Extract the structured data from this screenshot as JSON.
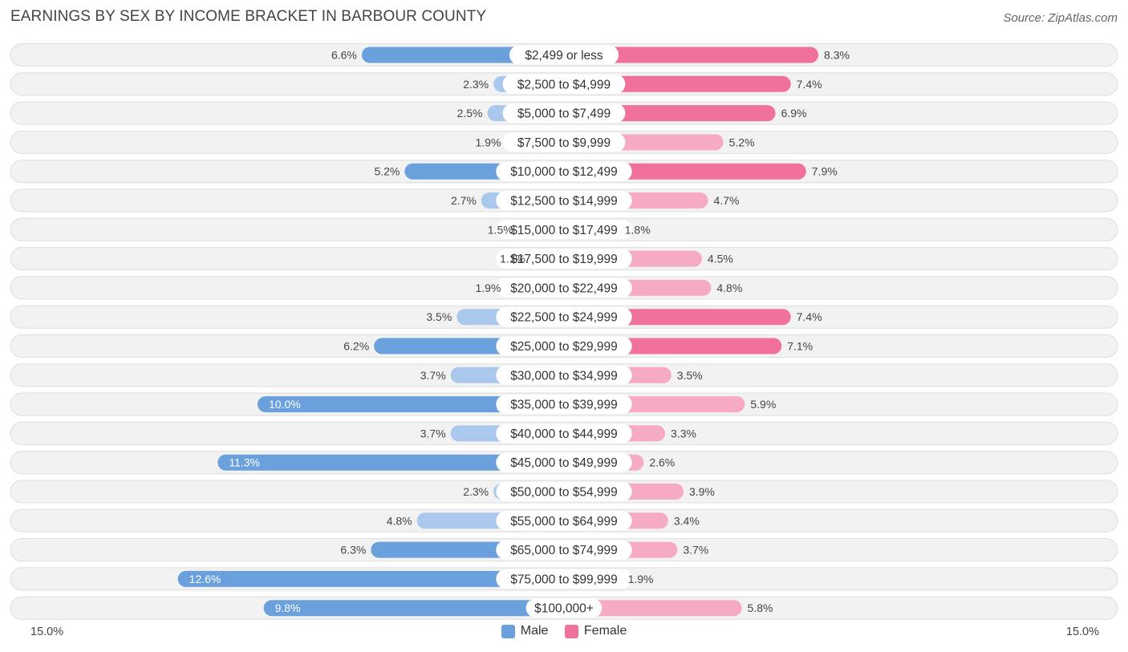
{
  "header": {
    "title": "EARNINGS BY SEX BY INCOME BRACKET IN BARBOUR COUNTY",
    "source": "Source: ZipAtlas.com"
  },
  "colors": {
    "male_strong": "#6aa0dc",
    "male_light": "#a9c8ec",
    "female_strong": "#f0719a",
    "female_light": "#f7aac3",
    "row_bg": "#f2f2f2"
  },
  "chart_data": {
    "type": "bar",
    "orientation": "horizontal-diverging",
    "categories": [
      "$2,499 or less",
      "$2,500 to $4,999",
      "$5,000 to $7,499",
      "$7,500 to $9,999",
      "$10,000 to $12,499",
      "$12,500 to $14,999",
      "$15,000 to $17,499",
      "$17,500 to $19,999",
      "$20,000 to $22,499",
      "$22,500 to $24,999",
      "$25,000 to $29,999",
      "$30,000 to $34,999",
      "$35,000 to $39,999",
      "$40,000 to $44,999",
      "$45,000 to $49,999",
      "$50,000 to $54,999",
      "$55,000 to $64,999",
      "$65,000 to $74,999",
      "$75,000 to $99,999",
      "$100,000+"
    ],
    "series": [
      {
        "name": "Male",
        "values": [
          6.6,
          2.3,
          2.5,
          1.9,
          5.2,
          2.7,
          1.5,
          1.1,
          1.9,
          3.5,
          6.2,
          3.7,
          10.0,
          3.7,
          11.3,
          2.3,
          4.8,
          6.3,
          12.6,
          9.8
        ],
        "labels": [
          "6.6%",
          "2.3%",
          "2.5%",
          "1.9%",
          "5.2%",
          "2.7%",
          "1.5%",
          "1.1%",
          "1.9%",
          "3.5%",
          "6.2%",
          "3.7%",
          "10.0%",
          "3.7%",
          "11.3%",
          "2.3%",
          "4.8%",
          "6.3%",
          "12.6%",
          "9.8%"
        ]
      },
      {
        "name": "Female",
        "values": [
          8.3,
          7.4,
          6.9,
          5.2,
          7.9,
          4.7,
          1.8,
          4.5,
          4.8,
          7.4,
          7.1,
          3.5,
          5.9,
          3.3,
          2.6,
          3.9,
          3.4,
          3.7,
          1.9,
          5.8
        ],
        "labels": [
          "8.3%",
          "7.4%",
          "6.9%",
          "5.2%",
          "7.9%",
          "4.7%",
          "1.8%",
          "4.5%",
          "4.8%",
          "7.4%",
          "7.1%",
          "3.5%",
          "5.9%",
          "3.3%",
          "2.6%",
          "3.9%",
          "3.4%",
          "3.7%",
          "1.9%",
          "5.8%"
        ]
      }
    ],
    "xlim": [
      -15.0,
      15.0
    ],
    "axis_labels": {
      "left": "15.0%",
      "right": "15.0%"
    },
    "legend": [
      "Male",
      "Female"
    ],
    "legend_position": "bottom-center",
    "unit": "%"
  }
}
